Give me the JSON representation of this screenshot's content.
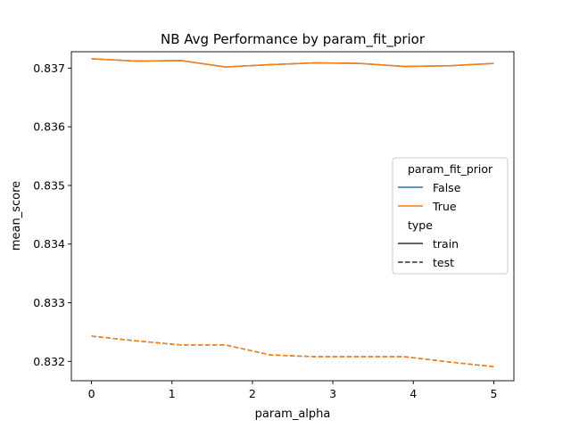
{
  "chart_data": {
    "type": "line",
    "title": "NB Avg Performance by param_fit_prior",
    "xlabel": "param_alpha",
    "ylabel": "mean_score",
    "xlim": [
      -0.25,
      5.25
    ],
    "ylim": [
      0.83167,
      0.83728
    ],
    "xticks": [
      "0",
      "1",
      "2",
      "3",
      "4",
      "5"
    ],
    "yticks": [
      "0.832",
      "0.833",
      "0.834",
      "0.835",
      "0.836",
      "0.837"
    ],
    "x": [
      0.0,
      0.556,
      1.111,
      1.667,
      2.222,
      2.778,
      3.333,
      3.889,
      4.444,
      5.0
    ],
    "series": [
      {
        "name": "False",
        "type": "train",
        "color": "#1f77b4",
        "dash": "solid",
        "values": [
          0.83716,
          0.83712,
          0.83713,
          0.83702,
          0.83706,
          0.83709,
          0.83708,
          0.83703,
          0.83704,
          0.83708
        ]
      },
      {
        "name": "True",
        "type": "train",
        "color": "#ff7f0e",
        "dash": "solid",
        "values": [
          0.83716,
          0.83712,
          0.83713,
          0.83702,
          0.83706,
          0.83709,
          0.83708,
          0.83703,
          0.83704,
          0.83708
        ]
      },
      {
        "name": "False",
        "type": "test",
        "color": "#1f77b4",
        "dash": "dashed",
        "values": [
          0.83243,
          0.83235,
          0.83228,
          0.83228,
          0.83211,
          0.83208,
          0.83208,
          0.83208,
          0.83199,
          0.83191
        ]
      },
      {
        "name": "True",
        "type": "test",
        "color": "#ff7f0e",
        "dash": "dashed",
        "values": [
          0.83243,
          0.83235,
          0.83228,
          0.83228,
          0.83211,
          0.83208,
          0.83208,
          0.83208,
          0.83199,
          0.83191
        ]
      }
    ],
    "legend": {
      "placement": "center-right",
      "hue_title": "param_fit_prior",
      "hue_entries": [
        {
          "label": "False",
          "color": "#1f77b4"
        },
        {
          "label": "True",
          "color": "#ff7f0e"
        }
      ],
      "style_title": "type",
      "style_entries": [
        {
          "label": "train",
          "dash": "solid"
        },
        {
          "label": "test",
          "dash": "dashed"
        }
      ]
    },
    "grid": false
  }
}
